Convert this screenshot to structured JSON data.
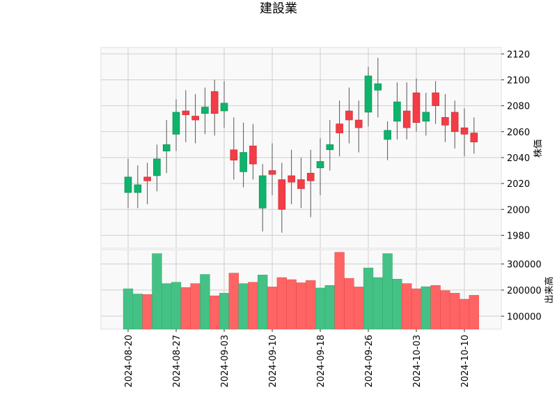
{
  "chart_data": {
    "type": "candlestick",
    "title": "建設業",
    "price_ylabel": "株価",
    "volume_ylabel": "出来高",
    "price_ylim": [
      1970,
      2125
    ],
    "price_ticks": [
      1980,
      2000,
      2020,
      2040,
      2060,
      2080,
      2100,
      2120
    ],
    "volume_ylim": [
      50000,
      355000
    ],
    "volume_ticks": [
      100000,
      200000,
      300000
    ],
    "volume_tick_labels": [
      "100000",
      "200000",
      "300000"
    ],
    "x_tick_labels": [
      "2024-08-20",
      "2024-08-27",
      "2024-09-03",
      "2024-09-10",
      "2024-09-18",
      "2024-09-26",
      "2024-10-03",
      "2024-10-10"
    ],
    "x_tick_indices": [
      0,
      5,
      10,
      15,
      20,
      25,
      30,
      35
    ],
    "colors": {
      "up": "#26a69a",
      "up_fill": "#0fb36b",
      "down": "#ef5350",
      "down_fill": "#f23c46",
      "wick": "#555555",
      "vol_up": "#44c184",
      "vol_down": "#ff6464"
    },
    "grid": true,
    "candles": [
      {
        "date": "2024-08-20",
        "open": 2013,
        "high": 2039,
        "low": 2001,
        "close": 2025
      },
      {
        "date": "2024-08-21",
        "open": 2013,
        "high": 2034,
        "low": 2001,
        "close": 2019
      },
      {
        "date": "2024-08-22",
        "open": 2025,
        "high": 2036,
        "low": 2004,
        "close": 2022
      },
      {
        "date": "2024-08-23",
        "open": 2026,
        "high": 2050,
        "low": 2014,
        "close": 2039
      },
      {
        "date": "2024-08-26",
        "open": 2045,
        "high": 2069,
        "low": 2028,
        "close": 2050
      },
      {
        "date": "2024-08-27",
        "open": 2058,
        "high": 2085,
        "low": 2045,
        "close": 2075
      },
      {
        "date": "2024-08-28",
        "open": 2076,
        "high": 2092,
        "low": 2052,
        "close": 2073
      },
      {
        "date": "2024-08-29",
        "open": 2072,
        "high": 2089,
        "low": 2051,
        "close": 2069
      },
      {
        "date": "2024-08-30",
        "open": 2074,
        "high": 2094,
        "low": 2058,
        "close": 2079
      },
      {
        "date": "2024-09-02",
        "open": 2091,
        "high": 2100,
        "low": 2057,
        "close": 2074
      },
      {
        "date": "2024-09-03",
        "open": 2076,
        "high": 2099,
        "low": 2063,
        "close": 2082
      },
      {
        "date": "2024-09-04",
        "open": 2046,
        "high": 2071,
        "low": 2023,
        "close": 2038
      },
      {
        "date": "2024-09-05",
        "open": 2029,
        "high": 2067,
        "low": 2017,
        "close": 2044
      },
      {
        "date": "2024-09-06",
        "open": 2049,
        "high": 2066,
        "low": 2023,
        "close": 2035
      },
      {
        "date": "2024-09-09",
        "open": 2001,
        "high": 2035,
        "low": 1983,
        "close": 2026
      },
      {
        "date": "2024-09-10",
        "open": 2030,
        "high": 2051,
        "low": 2011,
        "close": 2027
      },
      {
        "date": "2024-09-11",
        "open": 2023,
        "high": 2036,
        "low": 1982,
        "close": 2000
      },
      {
        "date": "2024-09-12",
        "open": 2026,
        "high": 2046,
        "low": 2004,
        "close": 2021
      },
      {
        "date": "2024-09-13",
        "open": 2023,
        "high": 2040,
        "low": 2001,
        "close": 2016
      },
      {
        "date": "2024-09-17",
        "open": 2028,
        "high": 2046,
        "low": 1994,
        "close": 2022
      },
      {
        "date": "2024-09-18",
        "open": 2032,
        "high": 2055,
        "low": 2011,
        "close": 2037
      },
      {
        "date": "2024-09-19",
        "open": 2046,
        "high": 2069,
        "low": 2030,
        "close": 2050
      },
      {
        "date": "2024-09-20",
        "open": 2066,
        "high": 2084,
        "low": 2041,
        "close": 2059
      },
      {
        "date": "2024-09-24",
        "open": 2076,
        "high": 2094,
        "low": 2051,
        "close": 2069
      },
      {
        "date": "2024-09-25",
        "open": 2069,
        "high": 2084,
        "low": 2044,
        "close": 2063
      },
      {
        "date": "2024-09-26",
        "open": 2075,
        "high": 2110,
        "low": 2064,
        "close": 2103
      },
      {
        "date": "2024-09-27",
        "open": 2092,
        "high": 2117,
        "low": 2071,
        "close": 2097
      },
      {
        "date": "2024-09-30",
        "open": 2054,
        "high": 2068,
        "low": 2038,
        "close": 2061
      },
      {
        "date": "2024-10-01",
        "open": 2068,
        "high": 2098,
        "low": 2054,
        "close": 2083
      },
      {
        "date": "2024-10-02",
        "open": 2076,
        "high": 2098,
        "low": 2054,
        "close": 2063
      },
      {
        "date": "2024-10-03",
        "open": 2090,
        "high": 2101,
        "low": 2060,
        "close": 2067
      },
      {
        "date": "2024-10-04",
        "open": 2068,
        "high": 2090,
        "low": 2057,
        "close": 2075
      },
      {
        "date": "2024-10-07",
        "open": 2090,
        "high": 2099,
        "low": 2066,
        "close": 2080
      },
      {
        "date": "2024-10-08",
        "open": 2071,
        "high": 2089,
        "low": 2052,
        "close": 2065
      },
      {
        "date": "2024-10-09",
        "open": 2075,
        "high": 2084,
        "low": 2047,
        "close": 2060
      },
      {
        "date": "2024-10-10",
        "open": 2063,
        "high": 2078,
        "low": 2041,
        "close": 2058
      },
      {
        "date": "2024-10-11",
        "open": 2059,
        "high": 2071,
        "low": 2043,
        "close": 2052
      }
    ],
    "volumes": [
      205000,
      185000,
      183000,
      340000,
      225000,
      230000,
      210000,
      225000,
      260000,
      178000,
      188000,
      265000,
      225000,
      230000,
      258000,
      212000,
      248000,
      240000,
      228000,
      237000,
      208000,
      218000,
      345000,
      245000,
      212000,
      285000,
      248000,
      340000,
      242000,
      225000,
      205000,
      213000,
      218000,
      198000,
      188000,
      165000,
      180000
    ]
  }
}
